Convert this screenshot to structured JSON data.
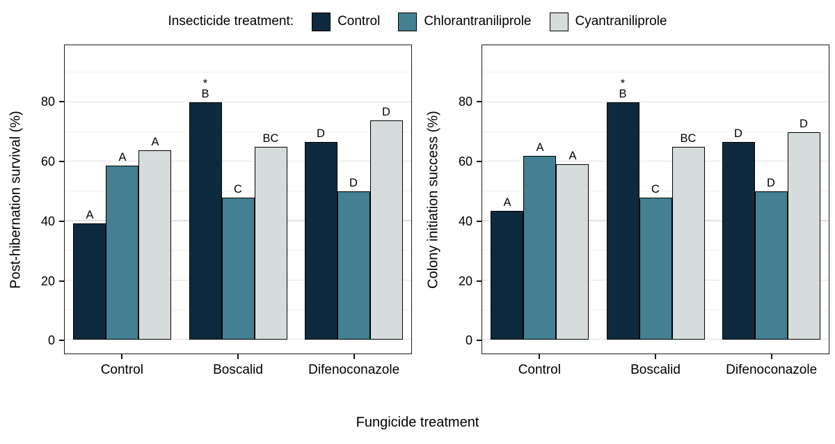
{
  "legend": {
    "title": "Insecticide treatment:",
    "items": [
      {
        "label": "Control",
        "color": "#0e2a3e"
      },
      {
        "label": "Chlorantraniliprole",
        "color": "#428092"
      },
      {
        "label": "Cyantraniliprole",
        "color": "#d5dcdb"
      }
    ]
  },
  "xlabel": "Fungicide treatment",
  "chart_data": [
    {
      "type": "bar",
      "ylabel": "Post-hibernation survival (%)",
      "categories": [
        "Control",
        "Boscalid",
        "Difenoconazole"
      ],
      "series": [
        {
          "name": "Control",
          "color": "#0e2a3e",
          "values": [
            39.3,
            80,
            66.7
          ],
          "letters": [
            "A",
            "B",
            "D"
          ],
          "asterisks": [
            false,
            true,
            false
          ]
        },
        {
          "name": "Chlorantraniliprole",
          "color": "#428092",
          "values": [
            58.7,
            48,
            50
          ],
          "letters": [
            "A",
            "C",
            "D"
          ],
          "asterisks": [
            false,
            false,
            false
          ]
        },
        {
          "name": "Cyantraniliprole",
          "color": "#d5dcdb",
          "values": [
            63.8,
            65,
            74
          ],
          "letters": [
            "A",
            "BC",
            "D"
          ],
          "asterisks": [
            false,
            false,
            false
          ]
        }
      ],
      "yticks": [
        0,
        20,
        40,
        60,
        80
      ],
      "minor_gridlines": [
        10,
        30,
        50,
        70,
        90
      ],
      "ylim": [
        0,
        99
      ],
      "grid": true,
      "legend_position": "top"
    },
    {
      "type": "bar",
      "ylabel": "Colony initiation success (%)",
      "categories": [
        "Control",
        "Boscalid",
        "Difenoconazole"
      ],
      "series": [
        {
          "name": "Control",
          "color": "#0e2a3e",
          "values": [
            43.5,
            80,
            66.7
          ],
          "letters": [
            "A",
            "B",
            "D"
          ],
          "asterisks": [
            false,
            true,
            false
          ]
        },
        {
          "name": "Chlorantraniliprole",
          "color": "#428092",
          "values": [
            62,
            48,
            50
          ],
          "letters": [
            "A",
            "C",
            "D"
          ],
          "asterisks": [
            false,
            false,
            false
          ]
        },
        {
          "name": "Cyantraniliprole",
          "color": "#d5dcdb",
          "values": [
            59.2,
            65,
            69.8
          ],
          "letters": [
            "A",
            "BC",
            "D"
          ],
          "asterisks": [
            false,
            false,
            false
          ]
        }
      ],
      "yticks": [
        0,
        20,
        40,
        60,
        80
      ],
      "minor_gridlines": [
        10,
        30,
        50,
        70,
        90
      ],
      "ylim": [
        0,
        99
      ],
      "grid": true,
      "legend_position": "top"
    }
  ]
}
